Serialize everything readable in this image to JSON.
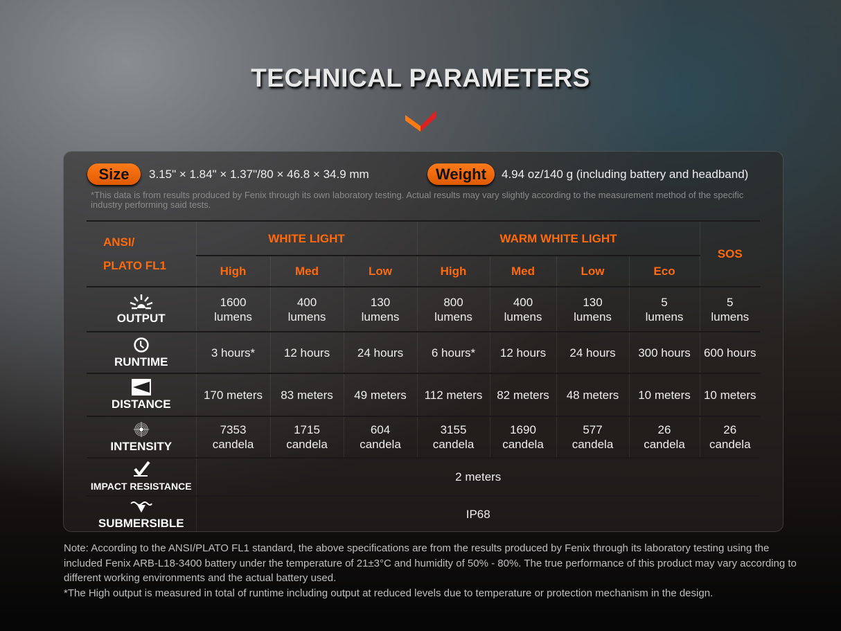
{
  "title": "TECHNICAL PARAMETERS",
  "colors": {
    "accent": "#ff6a0a",
    "pill": "#f06800"
  },
  "size": {
    "label": "Size",
    "value": "3.15\" × 1.84\" × 1.37\"/80 × 46.8 × 34.9 mm"
  },
  "weight": {
    "label": "Weight",
    "value": "4.94 oz/140 g (including battery and headband)"
  },
  "disclaimer": "*This data is from results produced by Fenix through its own laboratory testing. Actual results may vary slightly according to the measurement method of the specific industry performing said tests.",
  "table": {
    "corner": [
      "ANSI/",
      "PLATO FL1"
    ],
    "groups": [
      "WHITE LIGHT",
      "WARM WHITE LIGHT",
      "SOS"
    ],
    "modes": [
      "High",
      "Med",
      "Low",
      "High",
      "Med",
      "Low",
      "Eco"
    ],
    "rows": [
      {
        "label": "OUTPUT",
        "icon": "sunburst-icon",
        "cells": [
          [
            "1600",
            "lumens"
          ],
          [
            "400",
            "lumens"
          ],
          [
            "130",
            "lumens"
          ],
          [
            "800",
            "lumens"
          ],
          [
            "400",
            "lumens"
          ],
          [
            "130",
            "lumens"
          ],
          [
            "5",
            "lumens"
          ],
          [
            "5",
            "lumens"
          ]
        ]
      },
      {
        "label": "RUNTIME",
        "icon": "clock-icon",
        "cells": [
          [
            "3 hours*"
          ],
          [
            "12 hours"
          ],
          [
            "24 hours"
          ],
          [
            "6 hours*"
          ],
          [
            "12 hours"
          ],
          [
            "24 hours"
          ],
          [
            "300 hours"
          ],
          [
            "600 hours"
          ]
        ]
      },
      {
        "label": "DISTANCE",
        "icon": "beam-distance-icon",
        "cells": [
          [
            "170 meters"
          ],
          [
            "83 meters"
          ],
          [
            "49 meters"
          ],
          [
            "112 meters"
          ],
          [
            "82 meters"
          ],
          [
            "48 meters"
          ],
          [
            "10 meters"
          ],
          [
            "10 meters"
          ]
        ]
      },
      {
        "label": "INTENSITY",
        "icon": "target-icon",
        "cells": [
          [
            "7353",
            "candela"
          ],
          [
            "1715",
            "candela"
          ],
          [
            "604",
            "candela"
          ],
          [
            "3155",
            "candela"
          ],
          [
            "1690",
            "candela"
          ],
          [
            "577",
            "candela"
          ],
          [
            "26",
            "candela"
          ],
          [
            "26",
            "candela"
          ]
        ]
      }
    ],
    "impact": {
      "label": "IMPACT RESISTANCE",
      "icon": "impact-icon",
      "value": "2 meters"
    },
    "submersible": {
      "label": "SUBMERSIBLE",
      "icon": "water-drop-icon",
      "value": "IP68"
    }
  },
  "note": [
    "Note: According to the ANSI/PLATO FL1 standard, the above specifications are from the results produced by Fenix through its laboratory testing using the included Fenix ARB-L18-3400 battery under the temperature of 21±3°C and humidity of 50% - 80%. The true performance of this product may vary according to different working environments and the actual battery used.",
    "*The High output is measured in total of runtime including output at reduced levels due to temperature or protection mechanism in the design."
  ]
}
